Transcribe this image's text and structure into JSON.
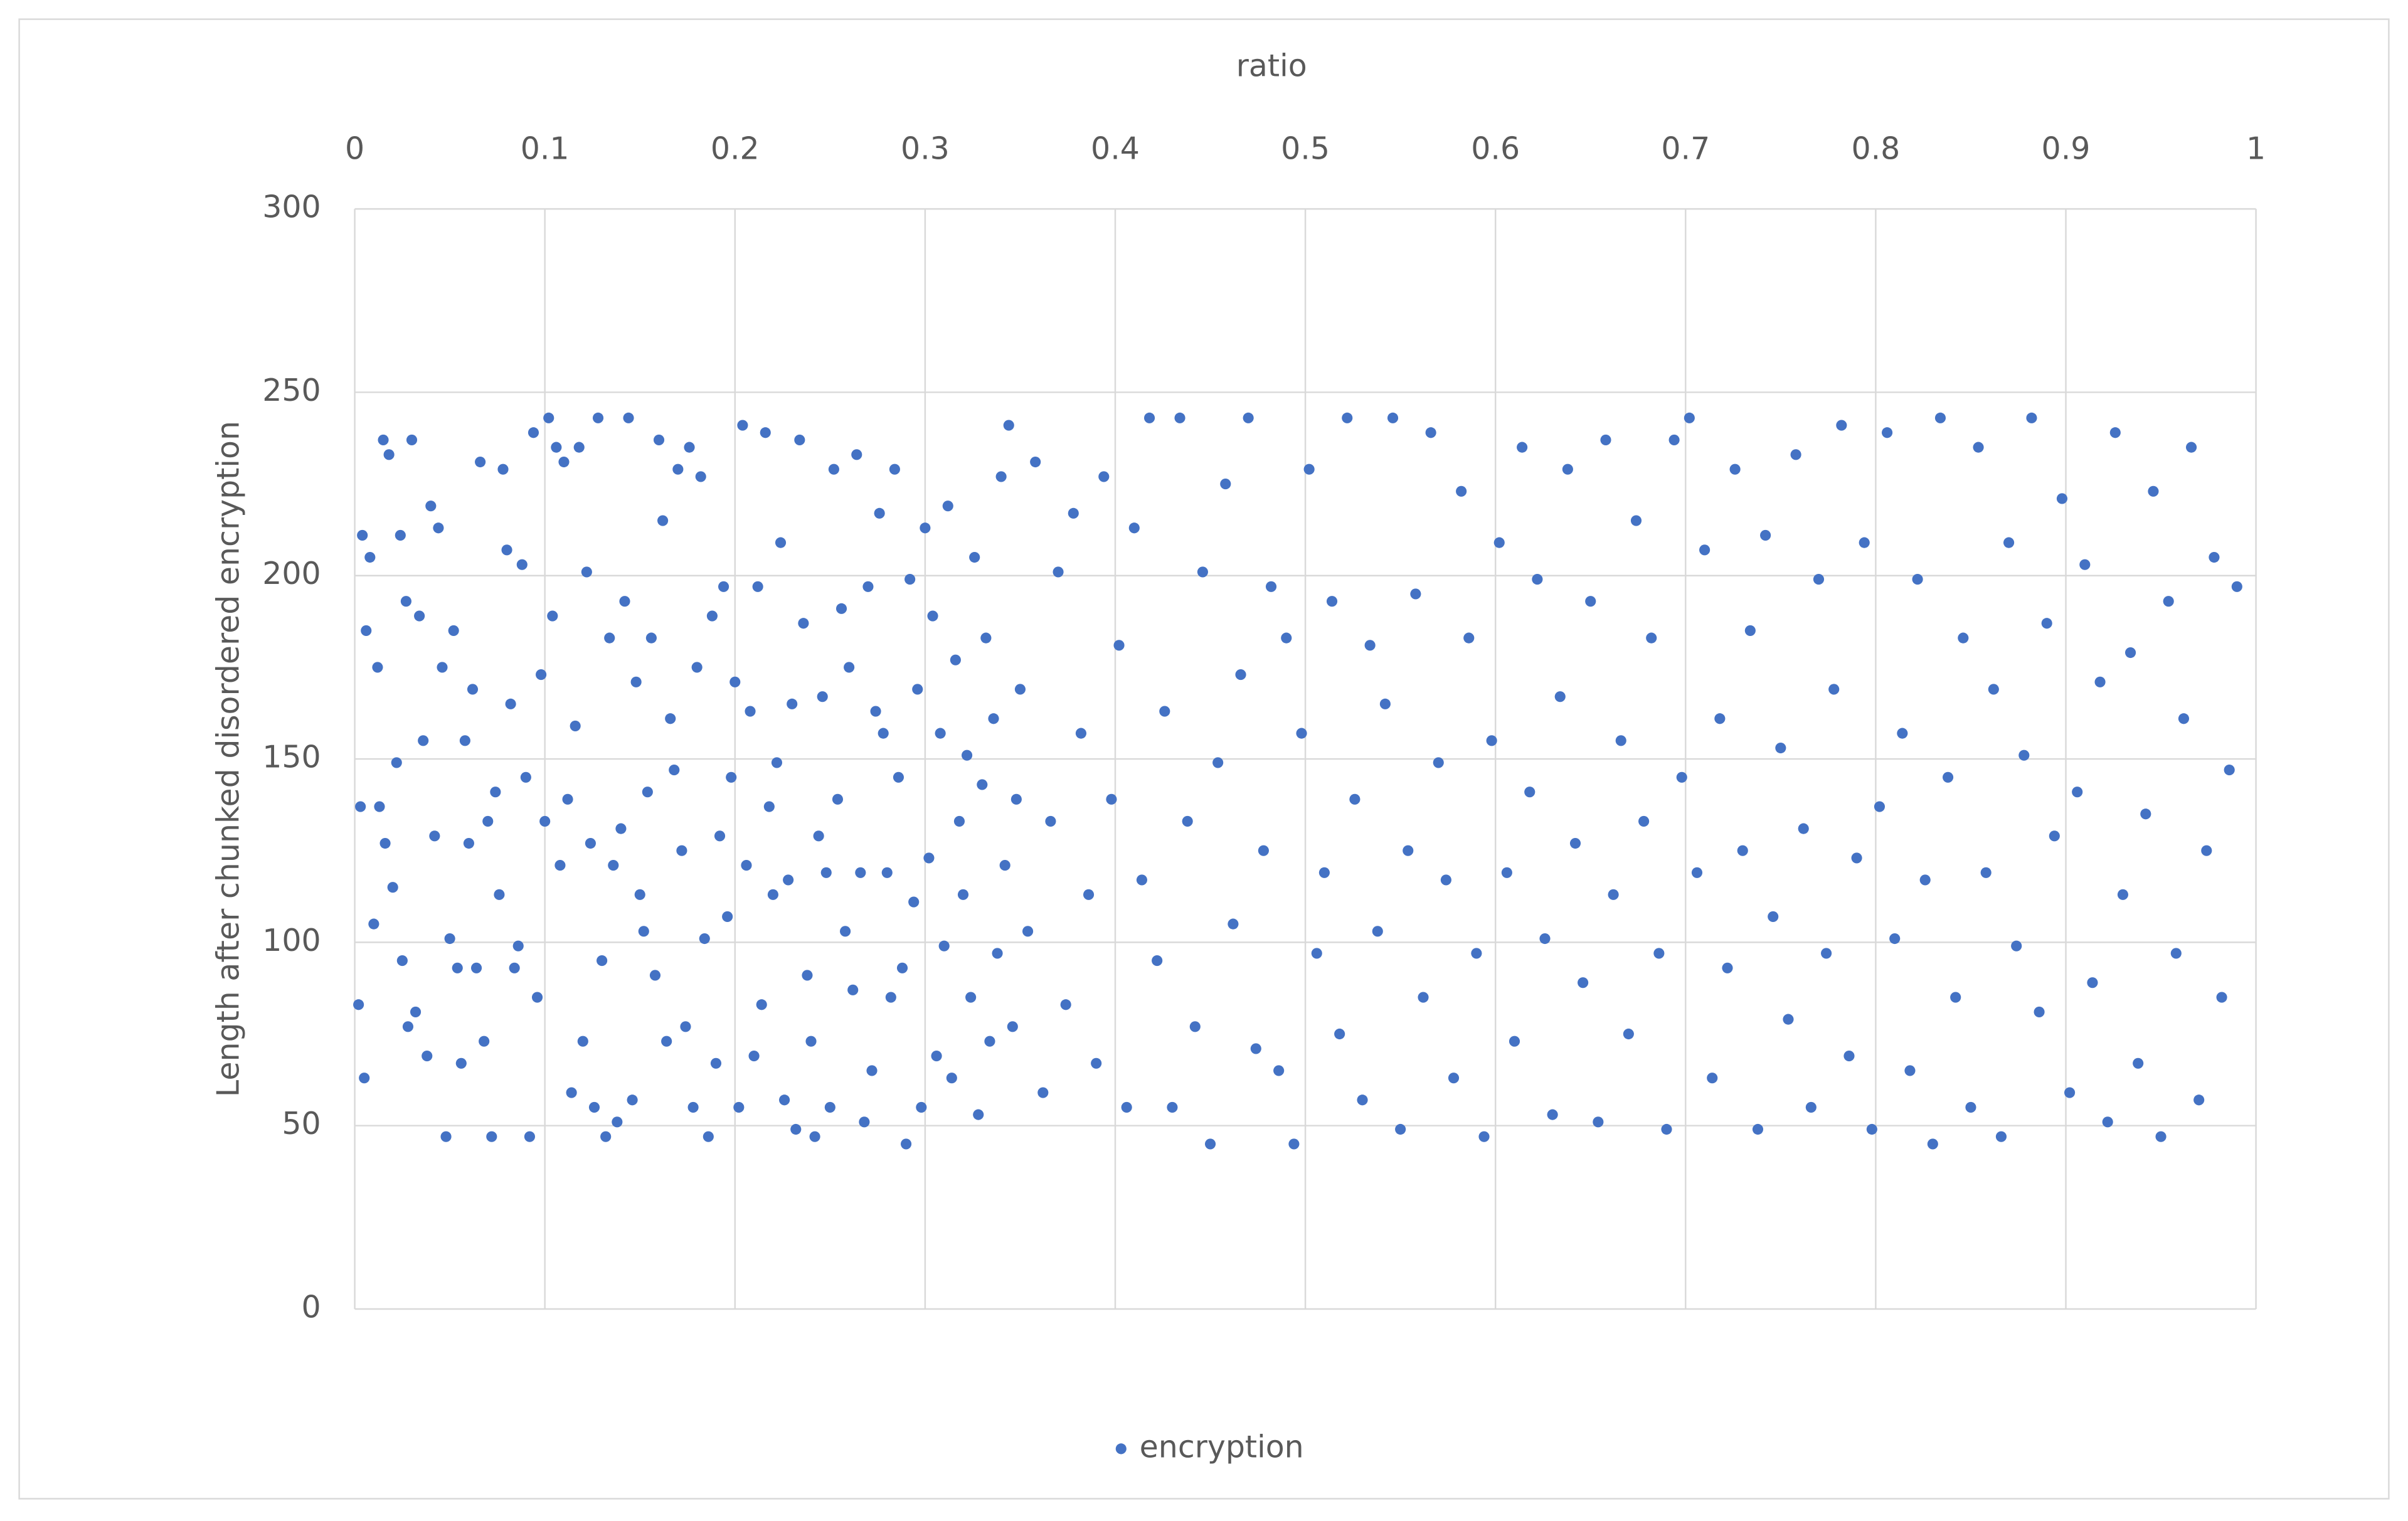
{
  "chart_data": {
    "type": "scatter",
    "x_label": "ratio",
    "y_label": "Length after chunked disordered encryption",
    "xlim": [
      0,
      1
    ],
    "xticks": [
      0,
      0.1,
      0.2,
      0.3,
      0.4,
      0.5,
      0.6,
      0.7,
      0.8,
      0.9,
      1
    ],
    "ylim": [
      0,
      300
    ],
    "yticks": [
      0,
      50,
      100,
      150,
      200,
      250,
      300
    ],
    "grid": true,
    "legend": "bottom",
    "x": [
      0.002,
      0.003,
      0.004,
      0.005,
      0.006,
      0.008,
      0.01,
      0.012,
      0.013,
      0.015,
      0.016,
      0.018,
      0.02,
      0.022,
      0.024,
      0.025,
      0.027,
      0.028,
      0.03,
      0.032,
      0.034,
      0.036,
      0.038,
      0.04,
      0.042,
      0.044,
      0.046,
      0.048,
      0.05,
      0.052,
      0.054,
      0.056,
      0.058,
      0.06,
      0.062,
      0.064,
      0.066,
      0.068,
      0.07,
      0.072,
      0.074,
      0.076,
      0.078,
      0.08,
      0.082,
      0.084,
      0.086,
      0.088,
      0.09,
      0.092,
      0.094,
      0.096,
      0.098,
      0.1,
      0.102,
      0.104,
      0.106,
      0.108,
      0.11,
      0.112,
      0.114,
      0.116,
      0.118,
      0.12,
      0.122,
      0.124,
      0.126,
      0.128,
      0.13,
      0.132,
      0.134,
      0.136,
      0.138,
      0.14,
      0.142,
      0.144,
      0.146,
      0.148,
      0.15,
      0.152,
      0.154,
      0.156,
      0.158,
      0.16,
      0.162,
      0.164,
      0.166,
      0.168,
      0.17,
      0.172,
      0.174,
      0.176,
      0.178,
      0.18,
      0.182,
      0.184,
      0.186,
      0.188,
      0.19,
      0.192,
      0.194,
      0.196,
      0.198,
      0.2,
      0.202,
      0.204,
      0.206,
      0.208,
      0.21,
      0.212,
      0.214,
      0.216,
      0.218,
      0.22,
      0.222,
      0.224,
      0.226,
      0.228,
      0.23,
      0.232,
      0.234,
      0.236,
      0.238,
      0.24,
      0.242,
      0.244,
      0.246,
      0.248,
      0.25,
      0.252,
      0.254,
      0.256,
      0.258,
      0.26,
      0.262,
      0.264,
      0.266,
      0.268,
      0.27,
      0.272,
      0.274,
      0.276,
      0.278,
      0.28,
      0.282,
      0.284,
      0.286,
      0.288,
      0.29,
      0.292,
      0.294,
      0.296,
      0.298,
      0.3,
      0.302,
      0.304,
      0.306,
      0.308,
      0.31,
      0.312,
      0.314,
      0.316,
      0.318,
      0.32,
      0.322,
      0.324,
      0.326,
      0.328,
      0.33,
      0.332,
      0.334,
      0.336,
      0.338,
      0.34,
      0.342,
      0.344,
      0.346,
      0.348,
      0.35,
      0.354,
      0.358,
      0.362,
      0.366,
      0.37,
      0.374,
      0.378,
      0.382,
      0.386,
      0.39,
      0.394,
      0.398,
      0.402,
      0.406,
      0.41,
      0.414,
      0.418,
      0.422,
      0.426,
      0.43,
      0.434,
      0.438,
      0.442,
      0.446,
      0.45,
      0.454,
      0.458,
      0.462,
      0.466,
      0.47,
      0.474,
      0.478,
      0.482,
      0.486,
      0.49,
      0.494,
      0.498,
      0.502,
      0.506,
      0.51,
      0.514,
      0.518,
      0.522,
      0.526,
      0.53,
      0.534,
      0.538,
      0.542,
      0.546,
      0.55,
      0.554,
      0.558,
      0.562,
      0.566,
      0.57,
      0.574,
      0.578,
      0.582,
      0.586,
      0.59,
      0.594,
      0.598,
      0.602,
      0.606,
      0.61,
      0.614,
      0.618,
      0.622,
      0.626,
      0.63,
      0.634,
      0.638,
      0.642,
      0.646,
      0.65,
      0.654,
      0.658,
      0.662,
      0.666,
      0.67,
      0.674,
      0.678,
      0.682,
      0.686,
      0.69,
      0.694,
      0.698,
      0.702,
      0.706,
      0.71,
      0.714,
      0.718,
      0.722,
      0.726,
      0.73,
      0.734,
      0.738,
      0.742,
      0.746,
      0.75,
      0.754,
      0.758,
      0.762,
      0.766,
      0.77,
      0.774,
      0.778,
      0.782,
      0.786,
      0.79,
      0.794,
      0.798,
      0.802,
      0.806,
      0.81,
      0.814,
      0.818,
      0.822,
      0.826,
      0.83,
      0.834,
      0.838,
      0.842,
      0.846,
      0.85,
      0.854,
      0.858,
      0.862,
      0.866,
      0.87,
      0.874,
      0.878,
      0.882,
      0.886,
      0.89,
      0.894,
      0.898,
      0.902,
      0.906,
      0.91,
      0.914,
      0.918,
      0.922,
      0.926,
      0.93,
      0.934,
      0.938,
      0.942,
      0.946,
      0.95,
      0.954,
      0.958,
      0.962,
      0.966,
      0.97,
      0.974,
      0.978,
      0.982,
      0.986,
      0.99
    ],
    "series": [
      {
        "name": "encryption",
        "color": "#4472c4",
        "values": [
          83,
          137,
          211,
          63,
          185,
          205,
          105,
          175,
          137,
          237,
          127,
          233,
          115,
          149,
          211,
          95,
          193,
          77,
          237,
          81,
          189,
          155,
          69,
          219,
          129,
          213,
          175,
          47,
          101,
          185,
          93,
          67,
          155,
          127,
          169,
          93,
          231,
          73,
          133,
          47,
          141,
          113,
          229,
          207,
          165,
          93,
          99,
          203,
          145,
          47,
          239,
          85,
          173,
          133,
          243,
          189,
          235,
          121,
          231,
          139,
          59,
          159,
          235,
          73,
          201,
          127,
          55,
          243,
          95,
          47,
          183,
          121,
          51,
          131,
          193,
          243,
          57,
          171,
          113,
          103,
          141,
          183,
          91,
          237,
          215,
          73,
          161,
          147,
          229,
          125,
          77,
          235,
          55,
          175,
          227,
          101,
          47,
          189,
          67,
          129,
          197,
          107,
          145,
          171,
          55,
          241,
          121,
          163,
          69,
          197,
          83,
          239,
          137,
          113,
          149,
          209,
          57,
          117,
          165,
          49,
          237,
          187,
          91,
          73,
          47,
          129,
          167,
          119,
          55,
          229,
          139,
          191,
          103,
          175,
          87,
          233,
          119,
          51,
          197,
          65,
          163,
          217,
          157,
          119,
          85,
          229,
          145,
          93,
          45,
          199,
          111,
          169,
          55,
          213,
          123,
          189,
          69,
          157,
          99,
          219,
          63,
          177,
          133,
          113,
          151,
          85,
          205,
          53,
          143,
          183,
          73,
          161,
          97,
          227,
          121,
          241,
          77,
          139,
          169,
          103,
          231,
          59,
          133,
          201,
          83,
          217,
          157,
          113,
          67,
          227,
          139,
          181,
          55,
          213,
          117,
          243,
          95,
          163,
          55,
          243,
          133,
          77,
          201,
          45,
          149,
          225,
          105,
          173,
          243,
          71,
          125,
          197,
          65,
          183,
          45,
          157,
          229,
          97,
          119,
          193,
          75,
          243,
          139,
          57,
          181,
          103,
          165,
          243,
          49,
          125,
          195,
          85,
          239,
          149,
          117,
          63,
          223,
          183,
          97,
          47,
          155,
          209,
          119,
          73,
          235,
          141,
          199,
          101,
          53,
          167,
          229,
          127,
          89,
          193,
          51,
          237,
          113,
          155,
          75,
          215,
          133,
          183,
          97,
          49,
          237,
          145,
          243,
          119,
          207,
          63,
          161,
          93,
          229,
          125,
          185,
          49,
          211,
          107,
          153,
          79,
          233,
          131,
          55,
          199,
          97,
          169,
          241,
          69,
          123,
          209,
          49,
          137,
          239,
          101,
          157,
          65,
          199,
          117,
          45,
          243,
          145,
          85,
          183,
          55,
          235,
          119,
          169,
          47,
          209,
          99,
          151,
          243,
          81,
          187,
          129,
          221,
          59,
          141,
          203,
          89,
          171,
          51,
          239,
          113,
          179,
          67,
          135,
          223,
          47,
          193,
          97,
          161,
          235,
          57,
          125,
          205,
          85,
          147,
          197
        ]
      }
    ]
  }
}
